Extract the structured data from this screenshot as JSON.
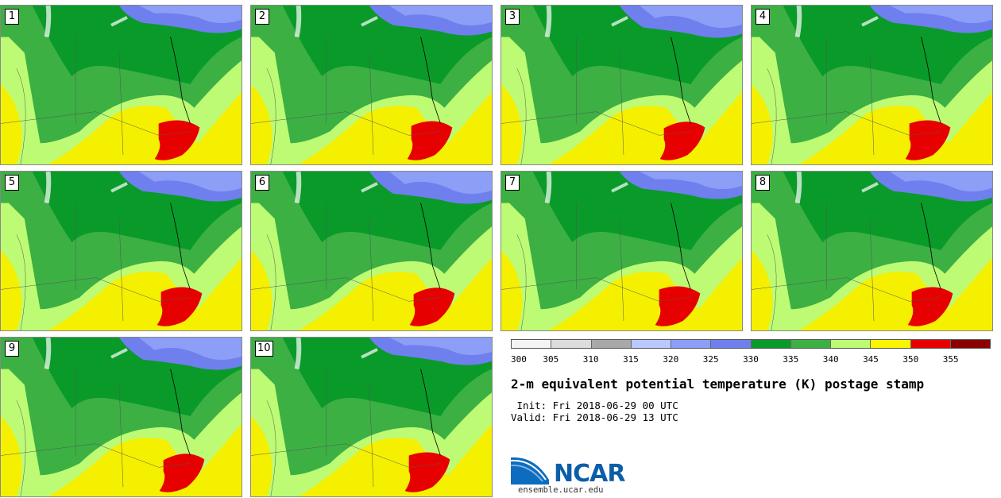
{
  "figure": {
    "title": "2-m equivalent potential temperature (K) postage stamp",
    "init_line": " Init: Fri 2018-06-29 00 UTC",
    "valid_line": "Valid: Fri 2018-06-29 13 UTC"
  },
  "panels": [
    {
      "label": "1"
    },
    {
      "label": "2"
    },
    {
      "label": "3"
    },
    {
      "label": "4"
    },
    {
      "label": "5"
    },
    {
      "label": "6"
    },
    {
      "label": "7"
    },
    {
      "label": "8"
    },
    {
      "label": "9"
    },
    {
      "label": "10"
    }
  ],
  "colorbar": {
    "ticks": [
      "300",
      "305",
      "310",
      "315",
      "320",
      "325",
      "330",
      "335",
      "340",
      "345",
      "350",
      "355"
    ],
    "colors": [
      "#f4f4f4",
      "#dcdcdc",
      "#a8a8a8",
      "#b9c9ff",
      "#8c9ef5",
      "#6f7fee",
      "#0a9a2a",
      "#3cb043",
      "#bdfb74",
      "#f9f500",
      "#e60000",
      "#8b0000"
    ]
  },
  "logo": {
    "name": "NCAR",
    "url": "ensemble.ucar.edu"
  }
}
